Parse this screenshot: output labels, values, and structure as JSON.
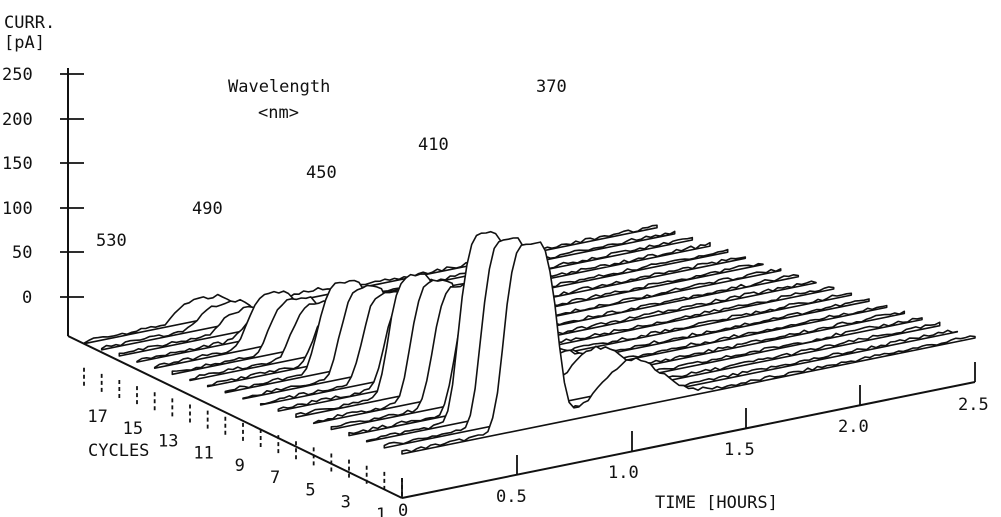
{
  "chart_data": {
    "type": "area",
    "ylabel": [
      "CURR.",
      "[pA]"
    ],
    "xlabel": "TIME [HOURS]",
    "zlabel": "CYCLES",
    "yticks": [
      0,
      50,
      100,
      150,
      200,
      250
    ],
    "xticks": [
      "0",
      "0.5",
      "1.0",
      "1.5",
      "2.0",
      "2.5"
    ],
    "cycle_ticks": [
      "1",
      "3",
      "5",
      "7",
      "9",
      "11",
      "13",
      "15",
      "17"
    ],
    "ylim": [
      0,
      250
    ],
    "xlim": [
      0,
      2.5
    ],
    "cycles": 19,
    "wavelength_title": [
      "Wavelength",
      "<nm>"
    ],
    "series": [
      {
        "name": "530",
        "peak": 22
      },
      {
        "name": "490",
        "peak": 55
      },
      {
        "name": "450",
        "peak": 95
      },
      {
        "name": "410",
        "peak": 130
      },
      {
        "name": "370",
        "peak": 205
      }
    ]
  }
}
